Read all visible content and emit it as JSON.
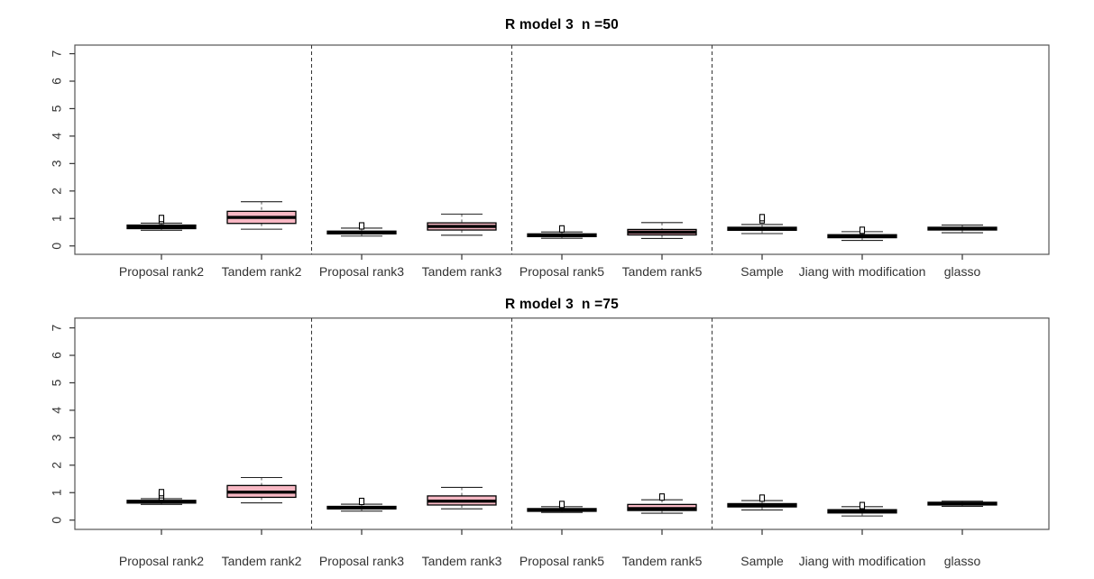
{
  "colors": {
    "box_fill": "#f8b8c4",
    "box_border": "#000000",
    "median": "#000000",
    "whisker": "#555555",
    "frame": "#555555",
    "text": "#333333"
  },
  "chart_data": [
    {
      "type": "boxplot",
      "title": "R model 3  n =50",
      "xlabel": "",
      "ylabel": "",
      "ylim": [
        0,
        7
      ],
      "ytick_labels": [
        "0",
        "1",
        "2",
        "3",
        "4",
        "5",
        "6",
        "7"
      ],
      "grid": false,
      "legend": "none",
      "separators_after": [
        1,
        3,
        5
      ],
      "categories": [
        "Proposal rank2",
        "Tandem rank2",
        "Proposal rank3",
        "Tandem rank3",
        "Proposal rank5",
        "Tandem rank5",
        "Sample",
        "Jiang with modification",
        "glasso"
      ],
      "series": [
        {
          "name": "Proposal rank2",
          "whisker_low": 0.57,
          "q1": 0.63,
          "median": 0.69,
          "q3": 0.76,
          "whisker_high": 0.83,
          "outliers": [
            0.93,
            1.0
          ]
        },
        {
          "name": "Tandem rank2",
          "whisker_low": 0.61,
          "q1": 0.82,
          "median": 1.04,
          "q3": 1.26,
          "whisker_high": 1.61,
          "outliers": []
        },
        {
          "name": "Proposal rank3",
          "whisker_low": 0.36,
          "q1": 0.44,
          "median": 0.49,
          "q3": 0.54,
          "whisker_high": 0.65,
          "outliers": [
            0.73
          ]
        },
        {
          "name": "Tandem rank3",
          "whisker_low": 0.39,
          "q1": 0.58,
          "median": 0.71,
          "q3": 0.84,
          "whisker_high": 1.16,
          "outliers": []
        },
        {
          "name": "Proposal rank5",
          "whisker_low": 0.28,
          "q1": 0.34,
          "median": 0.39,
          "q3": 0.44,
          "whisker_high": 0.51,
          "outliers": [
            0.62
          ]
        },
        {
          "name": "Tandem rank5",
          "whisker_low": 0.27,
          "q1": 0.4,
          "median": 0.5,
          "q3": 0.6,
          "whisker_high": 0.85,
          "outliers": []
        },
        {
          "name": "Sample",
          "whisker_low": 0.45,
          "q1": 0.57,
          "median": 0.62,
          "q3": 0.68,
          "whisker_high": 0.78,
          "outliers": [
            0.95,
            1.03
          ]
        },
        {
          "name": "Jiang with modification",
          "whisker_low": 0.2,
          "q1": 0.3,
          "median": 0.35,
          "q3": 0.41,
          "whisker_high": 0.52,
          "outliers": [
            0.57
          ]
        },
        {
          "name": "glasso",
          "whisker_low": 0.48,
          "q1": 0.58,
          "median": 0.63,
          "q3": 0.68,
          "whisker_high": 0.76,
          "outliers": []
        }
      ]
    },
    {
      "type": "boxplot",
      "title": "R model 3  n =75",
      "xlabel": "",
      "ylabel": "",
      "ylim": [
        0,
        7
      ],
      "ytick_labels": [
        "0",
        "1",
        "2",
        "3",
        "4",
        "5",
        "6",
        "7"
      ],
      "grid": false,
      "legend": "none",
      "separators_after": [
        1,
        3,
        5
      ],
      "categories": [
        "Proposal rank2",
        "Tandem rank2",
        "Proposal rank3",
        "Tandem rank3",
        "Proposal rank5",
        "Tandem rank5",
        "Sample",
        "Jiang with modification",
        "glasso"
      ],
      "series": [
        {
          "name": "Proposal rank2",
          "whisker_low": 0.57,
          "q1": 0.62,
          "median": 0.67,
          "q3": 0.72,
          "whisker_high": 0.78,
          "outliers": [
            0.84,
            0.92,
            1.0
          ]
        },
        {
          "name": "Tandem rank2",
          "whisker_low": 0.63,
          "q1": 0.83,
          "median": 1.02,
          "q3": 1.26,
          "whisker_high": 1.55,
          "outliers": []
        },
        {
          "name": "Proposal rank3",
          "whisker_low": 0.33,
          "q1": 0.41,
          "median": 0.45,
          "q3": 0.5,
          "whisker_high": 0.58,
          "outliers": [
            0.68
          ]
        },
        {
          "name": "Tandem rank3",
          "whisker_low": 0.41,
          "q1": 0.55,
          "median": 0.69,
          "q3": 0.88,
          "whisker_high": 1.19,
          "outliers": []
        },
        {
          "name": "Proposal rank5",
          "whisker_low": 0.28,
          "q1": 0.32,
          "median": 0.37,
          "q3": 0.42,
          "whisker_high": 0.49,
          "outliers": [
            0.57
          ]
        },
        {
          "name": "Tandem rank5",
          "whisker_low": 0.25,
          "q1": 0.35,
          "median": 0.42,
          "q3": 0.57,
          "whisker_high": 0.74,
          "outliers": [
            0.84
          ]
        },
        {
          "name": "Sample",
          "whisker_low": 0.37,
          "q1": 0.48,
          "median": 0.54,
          "q3": 0.6,
          "whisker_high": 0.71,
          "outliers": [
            0.8
          ]
        },
        {
          "name": "Jiang with modification",
          "whisker_low": 0.15,
          "q1": 0.26,
          "median": 0.32,
          "q3": 0.38,
          "whisker_high": 0.49,
          "outliers": [
            0.53
          ]
        },
        {
          "name": "glasso",
          "whisker_low": 0.5,
          "q1": 0.55,
          "median": 0.6,
          "q3": 0.65,
          "whisker_high": 0.69,
          "outliers": []
        }
      ]
    }
  ]
}
